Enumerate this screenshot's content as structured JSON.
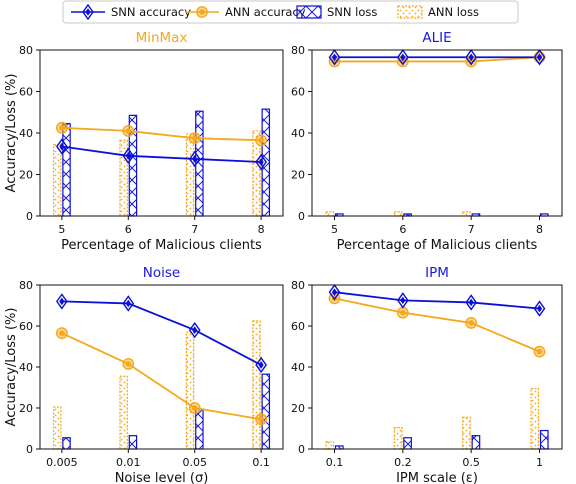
{
  "colors": {
    "snn": "#0a10d8",
    "ann": "#f5a81c",
    "minmax_title": "#f5a81c",
    "alie_title": "#1a1adc",
    "noise_title": "#1a1adc",
    "ipm_title": "#1a1adc"
  },
  "legend": [
    {
      "key": "snn_acc",
      "label": "SNN accuracy"
    },
    {
      "key": "ann_acc",
      "label": "ANN accuracy"
    },
    {
      "key": "snn_loss",
      "label": "SNN loss"
    },
    {
      "key": "ann_loss",
      "label": "ANN loss"
    }
  ],
  "y_label": "Accuracy/Loss (%)",
  "chart_data": [
    {
      "id": "minmax",
      "type": "bar+line",
      "title": "MinMax",
      "title_color_key": "minmax_title",
      "xlabel": "Percentage of Malicious clients",
      "categories": [
        "5",
        "6",
        "7",
        "8"
      ],
      "ylim": [
        0,
        80
      ],
      "yticks": [
        "0",
        "20",
        "40",
        "60",
        "80"
      ],
      "series": [
        {
          "name": "SNN accuracy",
          "kind": "line",
          "values": [
            33.5,
            29,
            27.5,
            26
          ]
        },
        {
          "name": "ANN accuracy",
          "kind": "line",
          "values": [
            42.5,
            41,
            37.5,
            36.5
          ]
        },
        {
          "name": "SNN loss",
          "kind": "bar",
          "values": [
            44.5,
            48.5,
            50.5,
            51.5
          ]
        },
        {
          "name": "ANN loss",
          "kind": "bar",
          "values": [
            34.5,
            36.5,
            39.5,
            41
          ]
        }
      ]
    },
    {
      "id": "alie",
      "type": "bar+line",
      "title": "ALIE",
      "title_color_key": "alie_title",
      "xlabel": "Percentage of Malicious clients",
      "categories": [
        "5",
        "6",
        "7",
        "8"
      ],
      "ylim": [
        0,
        80
      ],
      "yticks": [
        "0",
        "20",
        "40",
        "60",
        "80"
      ],
      "series": [
        {
          "name": "SNN accuracy",
          "kind": "line",
          "values": [
            76.5,
            76.5,
            76.5,
            76.5
          ]
        },
        {
          "name": "ANN accuracy",
          "kind": "line",
          "values": [
            74.5,
            74.5,
            74.5,
            76.5
          ]
        },
        {
          "name": "SNN loss",
          "kind": "bar",
          "values": [
            1,
            1,
            1,
            1
          ]
        },
        {
          "name": "ANN loss",
          "kind": "bar",
          "values": [
            2,
            2,
            2,
            0
          ]
        }
      ]
    },
    {
      "id": "noise",
      "type": "bar+line",
      "title": "Noise",
      "title_color_key": "noise_title",
      "xlabel": "Noise level (σ)",
      "categories": [
        "0.005",
        "0.01",
        "0.05",
        "0.1"
      ],
      "ylim": [
        0,
        80
      ],
      "yticks": [
        "0",
        "20",
        "40",
        "60",
        "80"
      ],
      "series": [
        {
          "name": "SNN accuracy",
          "kind": "line",
          "values": [
            72,
            71,
            58,
            41
          ]
        },
        {
          "name": "ANN accuracy",
          "kind": "line",
          "values": [
            56.5,
            41.5,
            20,
            14.5
          ]
        },
        {
          "name": "SNN loss",
          "kind": "bar",
          "values": [
            5.5,
            6.5,
            19.5,
            36.5
          ]
        },
        {
          "name": "ANN loss",
          "kind": "bar",
          "values": [
            20.5,
            35.5,
            57,
            62.5
          ]
        }
      ]
    },
    {
      "id": "ipm",
      "type": "bar+line",
      "title": "IPM",
      "title_color_key": "ipm_title",
      "xlabel": "IPM scale (ε)",
      "categories": [
        "0.1",
        "0.2",
        "0.5",
        "1"
      ],
      "ylim": [
        0,
        80
      ],
      "yticks": [
        "0",
        "20",
        "40",
        "60",
        "80"
      ],
      "series": [
        {
          "name": "SNN accuracy",
          "kind": "line",
          "values": [
            76.5,
            72.5,
            71.5,
            68.5
          ]
        },
        {
          "name": "ANN accuracy",
          "kind": "line",
          "values": [
            73.5,
            66.5,
            61.5,
            47.5
          ]
        },
        {
          "name": "SNN loss",
          "kind": "bar",
          "values": [
            1.5,
            5.5,
            6.5,
            9
          ]
        },
        {
          "name": "ANN loss",
          "kind": "bar",
          "values": [
            3.5,
            10.5,
            15.5,
            29.5
          ]
        }
      ]
    }
  ]
}
